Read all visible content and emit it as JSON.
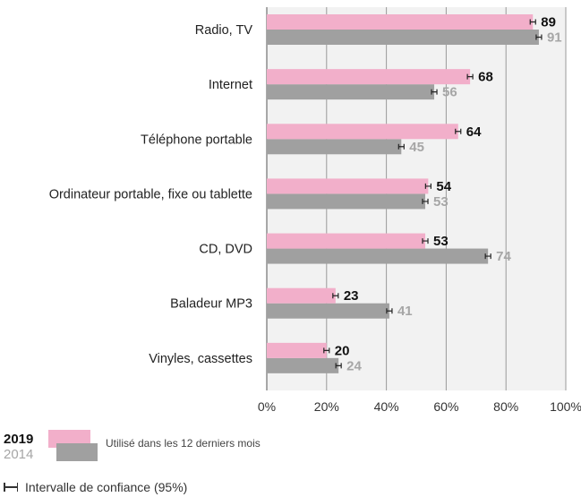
{
  "chart_data": {
    "type": "bar",
    "orientation": "horizontal",
    "categories": [
      "Radio, TV",
      "Internet",
      "Téléphone portable",
      "Ordinateur portable, fixe ou tablette",
      "CD, DVD",
      "Baladeur MP3",
      "Vinyles, cassettes"
    ],
    "series": [
      {
        "name": "2019",
        "values": [
          89,
          68,
          64,
          54,
          53,
          23,
          20
        ],
        "color": "#f2afca",
        "label_color": "#111111"
      },
      {
        "name": "2014",
        "values": [
          91,
          56,
          45,
          53,
          74,
          41,
          24
        ],
        "color": "#a0a0a0",
        "label_color": "#a6a6a6"
      }
    ],
    "xlim": [
      0,
      100
    ],
    "xticks": [
      "0%",
      "20%",
      "40%",
      "60%",
      "80%",
      "100%"
    ],
    "grid": true,
    "error_bars": "confidence interval 95%",
    "legend": {
      "year_top": "2019",
      "year_bottom": "2014",
      "series_label": "Utilisé dans les 12 derniers mois",
      "ci_label": "Intervalle de confiance (95%)"
    }
  }
}
